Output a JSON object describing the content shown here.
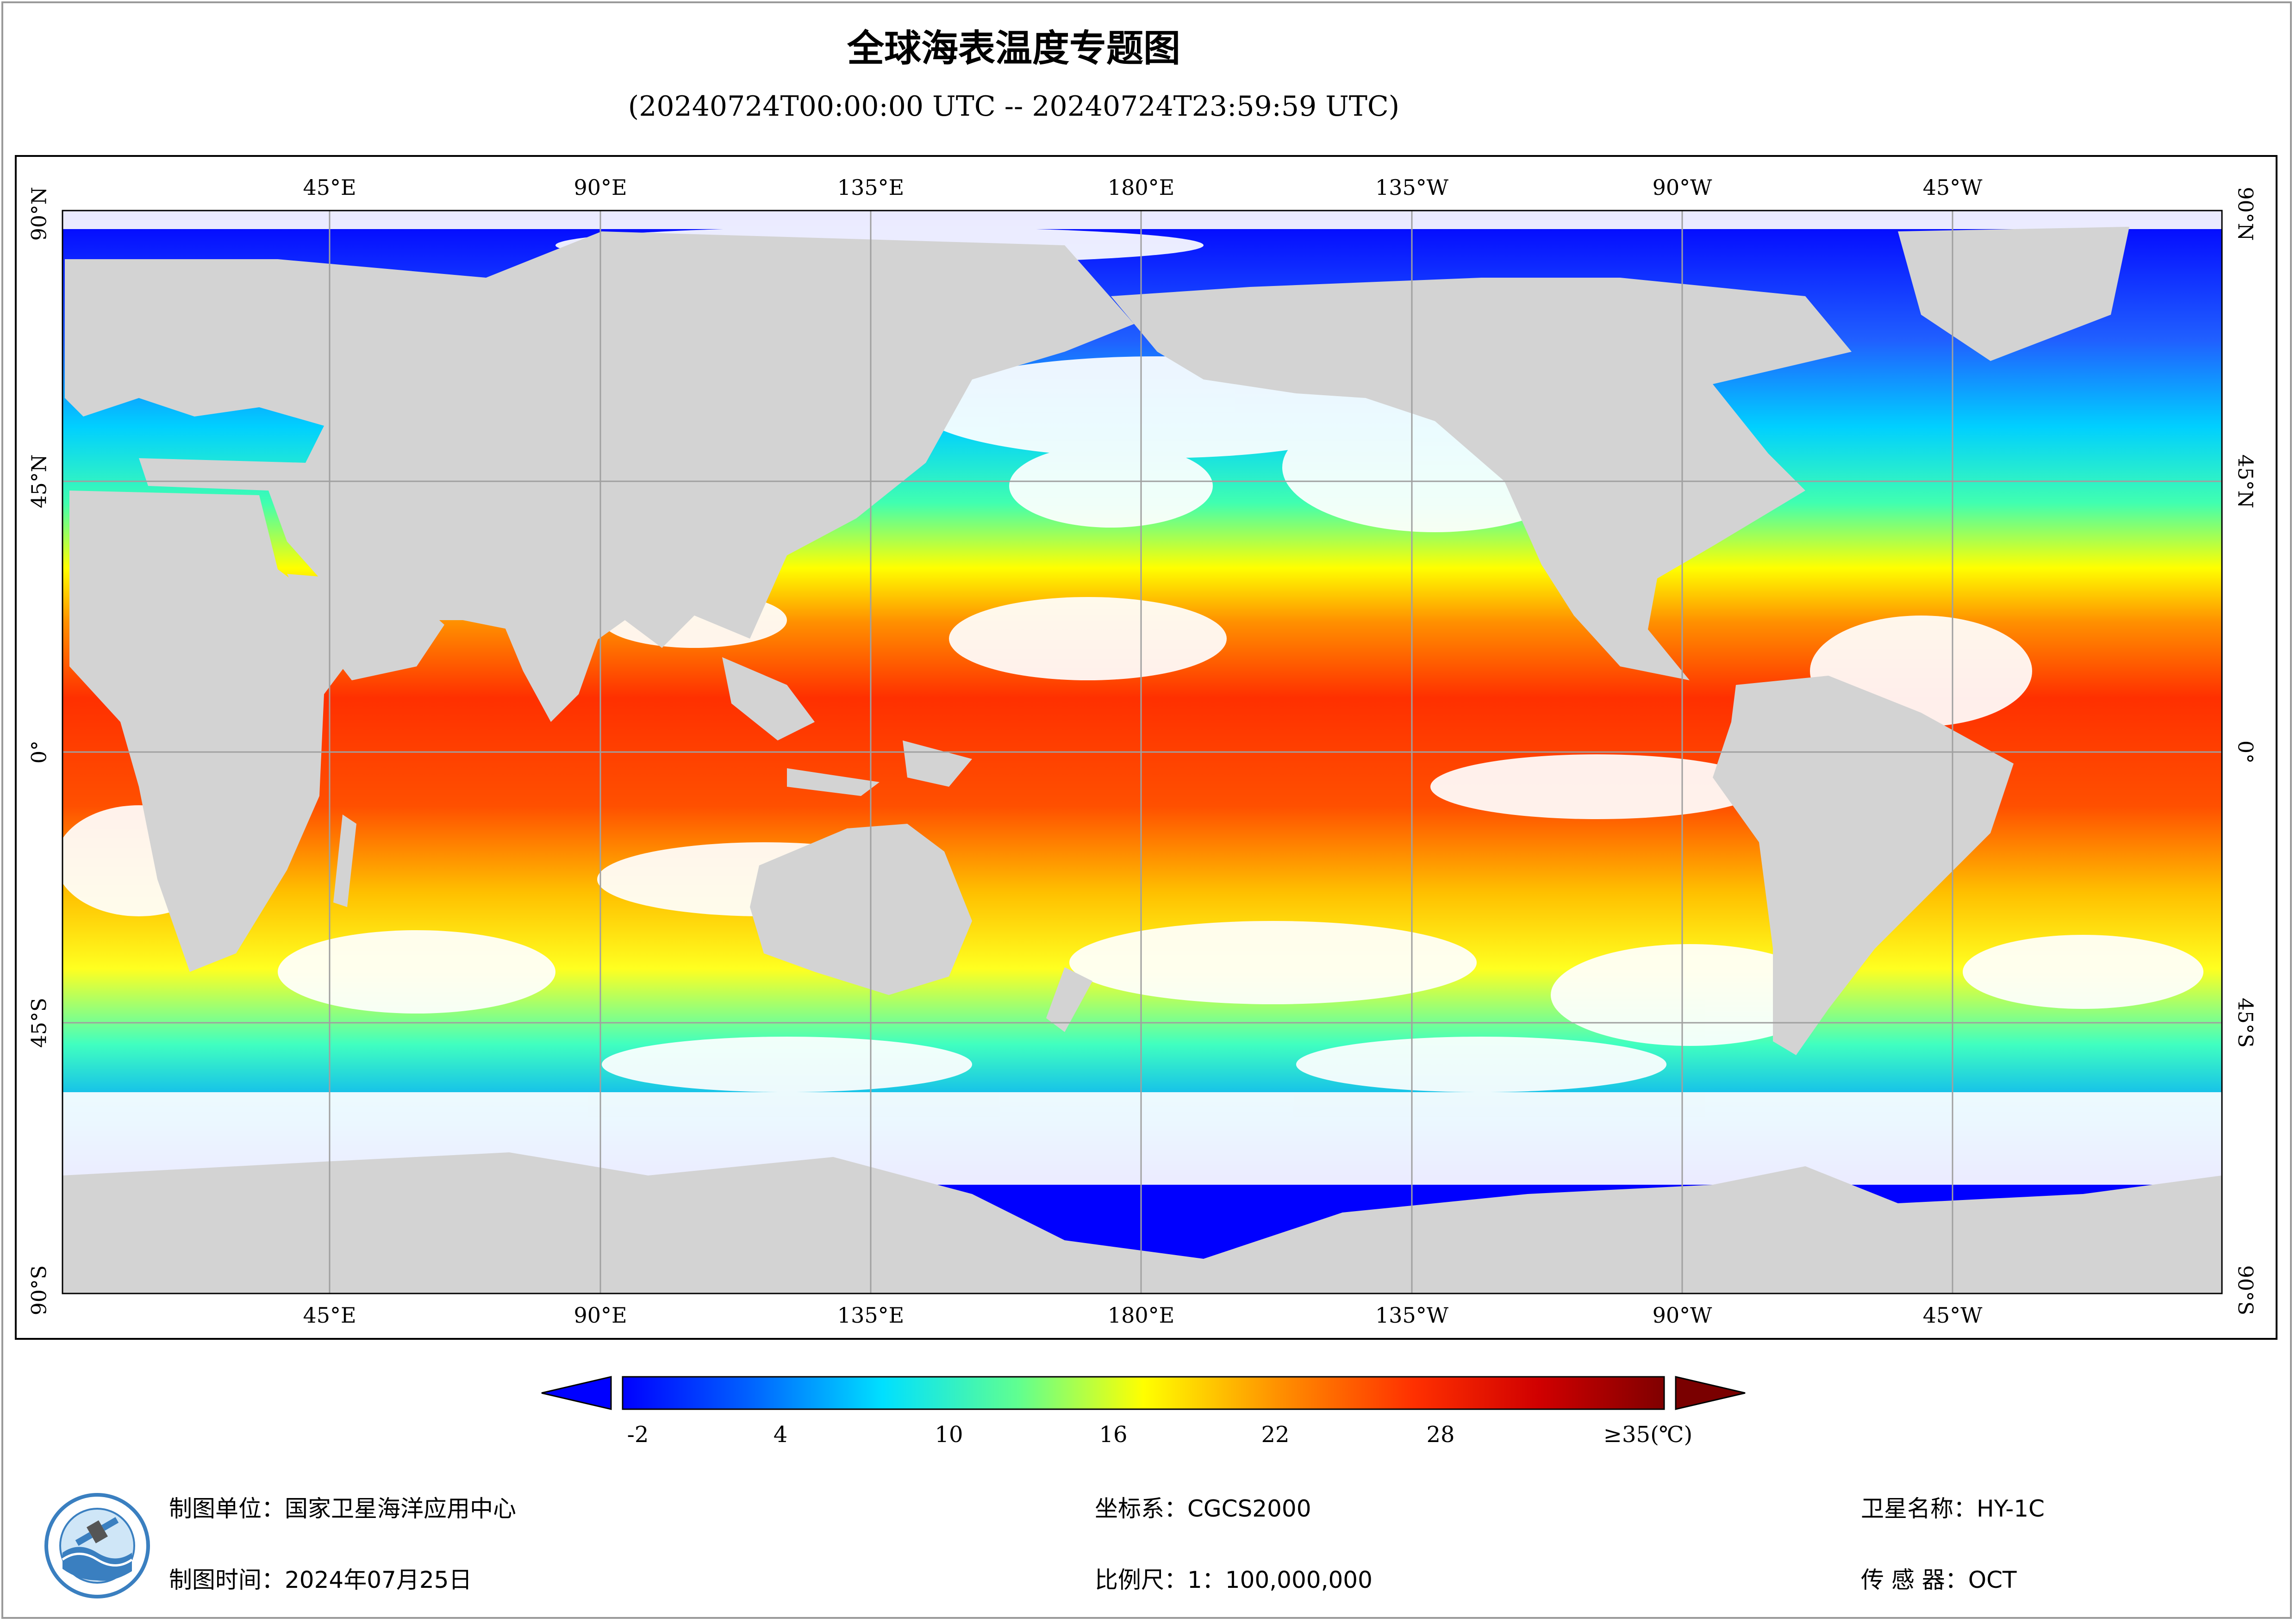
{
  "title": "全球海表温度专题图",
  "subtitle": "(20240724T00:00:00 UTC -- 20240724T23:59:59 UTC)",
  "map": {
    "lon_labels_top": [
      "45°E",
      "90°E",
      "135°E",
      "180°E",
      "135°W",
      "90°W",
      "45°W"
    ],
    "lon_labels_bottom": [
      "45°E",
      "90°E",
      "135°E",
      "180°E",
      "135°W",
      "90°W",
      "45°W"
    ],
    "lat_labels": [
      "90°N",
      "45°N",
      "0°",
      "45°S",
      "90°S"
    ],
    "land_color": "#d3d3d3",
    "no_data_color": "#ffffff",
    "grid_color": "#a0a0a0"
  },
  "legend": {
    "tick_labels": [
      "-2",
      "4",
      "10",
      "16",
      "22",
      "28",
      "≥35(℃)"
    ],
    "colors": [
      "#0000ff",
      "#00ffff",
      "#ffff00",
      "#ff0000",
      "#800000"
    ],
    "underflow_color": "#0000ff",
    "overflow_color": "#7a0000"
  },
  "footer": {
    "org": "制图单位：国家卫星海洋应用中心",
    "time": "制图时间：2024年07月25日",
    "crs": "坐标系：CGCS2000",
    "scale": "比例尺：1：100,000,000",
    "satellite": "卫星名称：HY-1C",
    "sensor": "传 感 器：OCT"
  },
  "logo": {
    "icon": "nsoas-logo-icon"
  }
}
